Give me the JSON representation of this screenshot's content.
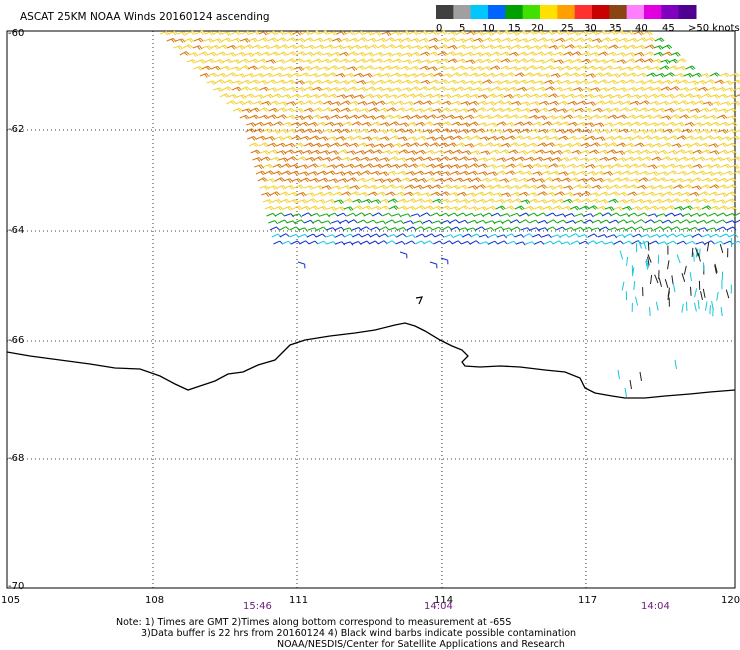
{
  "title": "ASCAT 25KM NOAA Winds 20160124 ascending",
  "legend": {
    "ticks": [
      "0",
      "5",
      "10",
      "15",
      "20",
      "25",
      "30",
      "35",
      "40",
      "45",
      ">50 knots"
    ],
    "colors": [
      "#404040",
      "#a0a0a0",
      "#00c8ff",
      "#0064ff",
      "#00a000",
      "#40e000",
      "#ffe000",
      "#ffa000",
      "#ff3030",
      "#c80000",
      "#8b4513",
      "#ff80ff",
      "#e000e0",
      "#8000c0",
      "#500090"
    ]
  },
  "map": {
    "lat_labels": [
      "-60",
      "-62",
      "-64",
      "-66",
      "-68",
      "-70"
    ],
    "lon_labels": [
      "105",
      "108",
      "111",
      "114",
      "117",
      "120"
    ],
    "times": [
      "15:46",
      "14:04",
      "14:04"
    ]
  },
  "notes": {
    "line1": "Note: 1) Times are GMT 2)Times along bottom correspond to measurement at -65S",
    "line2": "3)Data buffer is 22 hrs from 20160124 4) Black wind barbs indicate possible contamination",
    "line3": "NOAA/NESDIS/Center for Satellite Applications and Research"
  },
  "colors": {
    "yellow": "#f2d233",
    "orange": "#d9780f",
    "green": "#11a811",
    "blue": "#1030d0",
    "cyan": "#12c8e0",
    "black": "#202020",
    "coast": "#000000",
    "grid": "#000000"
  }
}
